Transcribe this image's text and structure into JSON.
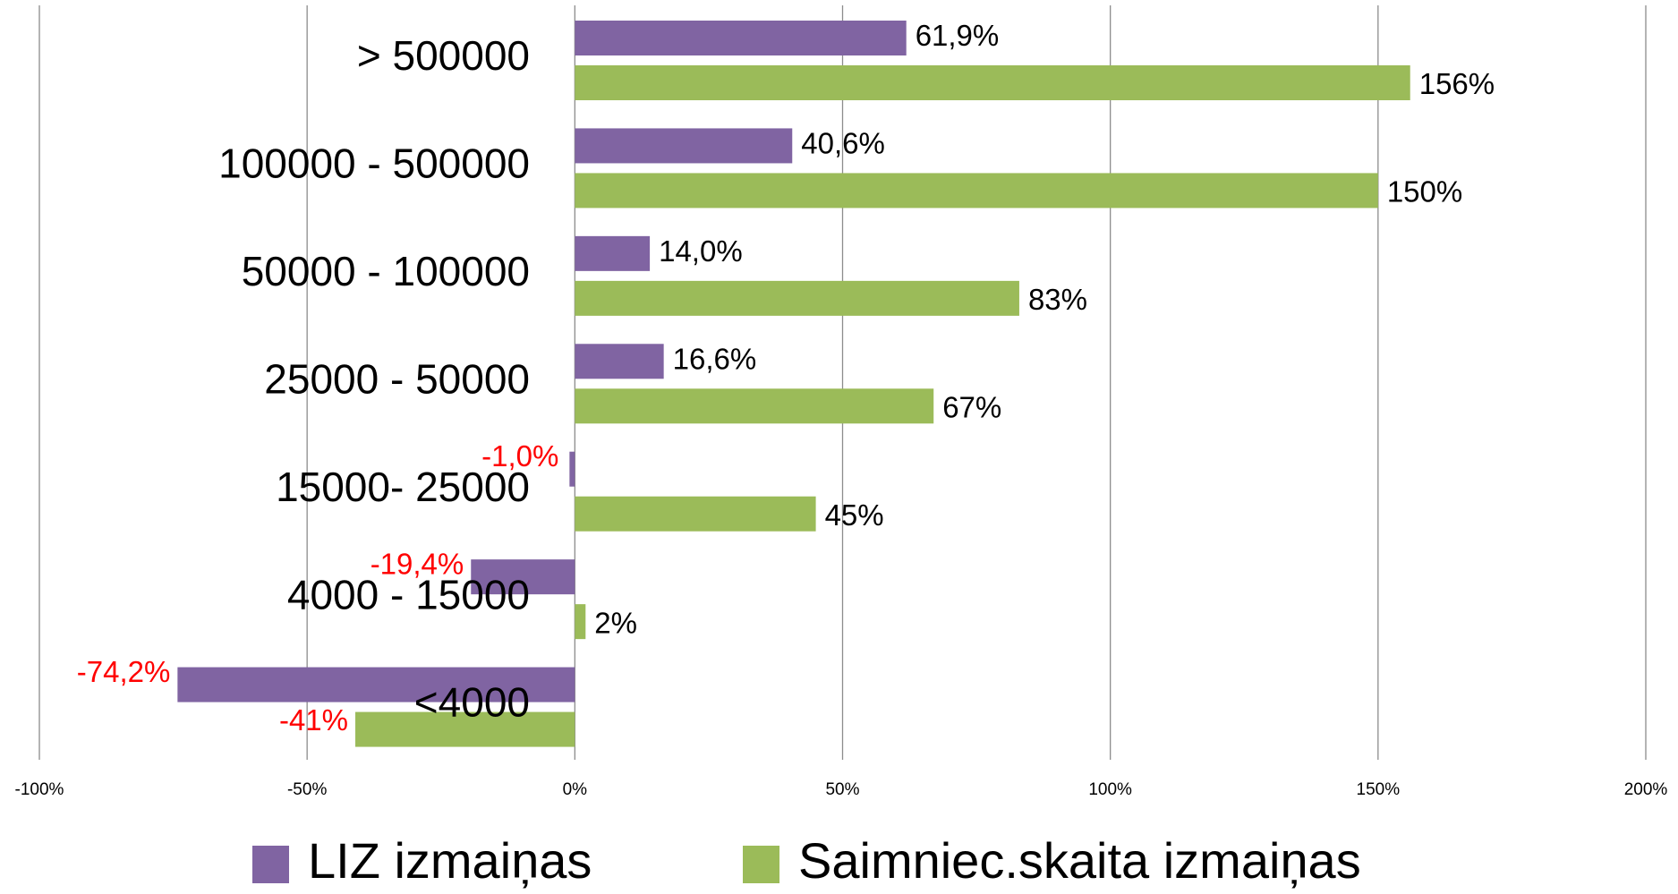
{
  "chart_data": {
    "type": "bar",
    "orientation": "horizontal",
    "categories": [
      "> 500000",
      "100000 - 500000",
      "50000 - 100000",
      "25000 - 50000",
      "15000- 25000",
      "4000 - 15000",
      "<4000"
    ],
    "series": [
      {
        "name": "LIZ izmaiņas",
        "color": "#8064a2",
        "values": [
          61.9,
          40.6,
          14.0,
          16.6,
          -1.0,
          -19.4,
          -74.2
        ],
        "value_labels": [
          "61,9%",
          "40,6%",
          "14,0%",
          "16,6%",
          "-1,0%",
          "-19,4%",
          "-74,2%"
        ]
      },
      {
        "name": "Saimniec.skaita izmaiņas",
        "color": "#9bbb59",
        "values": [
          156,
          150,
          83,
          67,
          45,
          2,
          -41
        ],
        "value_labels": [
          "156%",
          "150%",
          "83%",
          "67%",
          "45%",
          "2%",
          "-41%"
        ]
      }
    ],
    "negative_label_color": "#ff0000",
    "xlim": [
      -100,
      200
    ],
    "xticks": [
      {
        "value": -100,
        "label": "-100%"
      },
      {
        "value": -50,
        "label": "-50%"
      },
      {
        "value": 0,
        "label": "0%"
      },
      {
        "value": 50,
        "label": "50%"
      },
      {
        "value": 100,
        "label": "100%"
      },
      {
        "value": 150,
        "label": "150%"
      },
      {
        "value": 200,
        "label": "200%"
      }
    ],
    "grid": true,
    "legend": "bottom"
  }
}
